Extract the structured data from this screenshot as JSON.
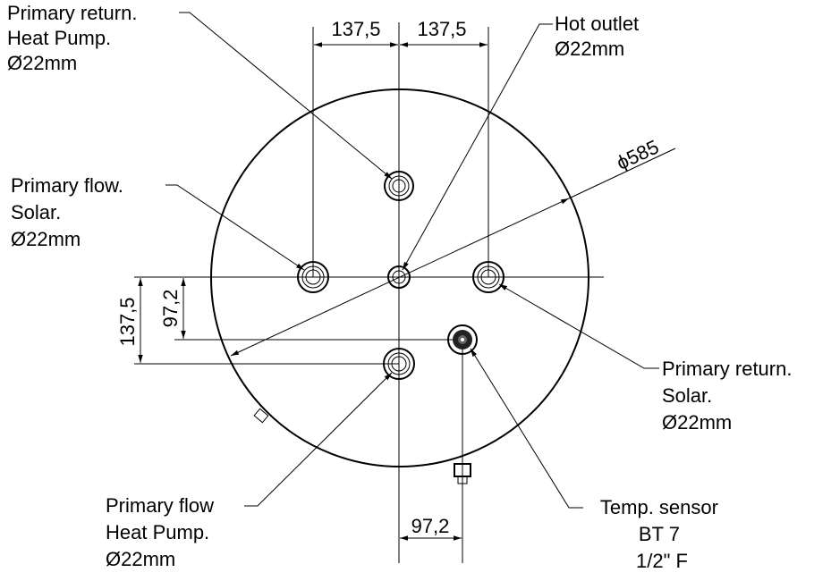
{
  "labels": [
    {
      "lines": [
        "Primary return.",
        "Heat Pump.",
        "Ø22mm"
      ]
    },
    {
      "lines": [
        "Hot outlet",
        "Ø22mm"
      ]
    },
    {
      "lines": [
        "Primary flow.",
        "Solar.",
        "Ø22mm"
      ]
    },
    {
      "lines": [
        "Primary return.",
        "Solar.",
        "Ø22mm"
      ]
    },
    {
      "lines": [
        "Primary flow",
        "Heat Pump.",
        "Ø22mm"
      ]
    },
    {
      "lines": [
        "Temp. sensor",
        "BT 7",
        "1/2\" F"
      ]
    }
  ],
  "dimensions": {
    "top_left": "137,5",
    "top_right": "137,5",
    "left_outer": "137,5",
    "left_inner": "97,2",
    "bottom": "97,2",
    "diameter": "ϕ585"
  }
}
